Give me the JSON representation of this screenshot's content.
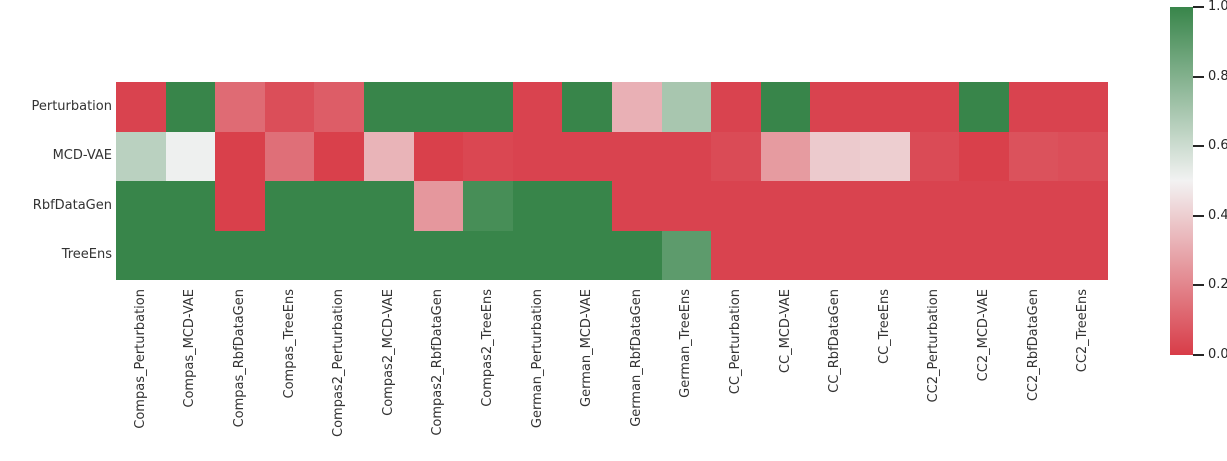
{
  "chart_data": {
    "type": "heatmap",
    "title": "",
    "xlabel": "",
    "ylabel": "",
    "rows": [
      "Perturbation",
      "MCD-VAE",
      "RbfDataGen",
      "TreeEns"
    ],
    "columns": [
      "Compas_Perturbation",
      "Compas_MCD-VAE",
      "Compas_RbfDataGen",
      "Compas_TreeEns",
      "Compas2_Perturbation",
      "Compas2_MCD-VAE",
      "Compas2_RbfDataGen",
      "Compas2_TreeEns",
      "German_Perturbation",
      "German_MCD-VAE",
      "German_RbfDataGen",
      "German_TreeEns",
      "CC_Perturbation",
      "CC_MCD-VAE",
      "CC_RbfDataGen",
      "CC_TreeEns",
      "CC2_Perturbation",
      "CC2_MCD-VAE",
      "CC2_RbfDataGen",
      "CC2_TreeEns"
    ],
    "values": [
      [
        0.02,
        1.0,
        0.13,
        0.05,
        0.09,
        1.0,
        1.0,
        1.0,
        0.02,
        1.0,
        0.32,
        0.7,
        0.02,
        1.0,
        0.02,
        0.02,
        0.02,
        1.0,
        0.02,
        0.02
      ],
      [
        0.65,
        0.51,
        0.01,
        0.14,
        0.01,
        0.33,
        0.01,
        0.03,
        0.02,
        0.02,
        0.02,
        0.02,
        0.04,
        0.26,
        0.39,
        0.4,
        0.04,
        0.01,
        0.06,
        0.05
      ],
      [
        1.0,
        1.0,
        0.01,
        1.0,
        1.0,
        1.0,
        0.25,
        0.96,
        1.0,
        1.0,
        0.02,
        0.02,
        0.02,
        0.02,
        0.02,
        0.02,
        0.02,
        0.02,
        0.02,
        0.02
      ],
      [
        1.0,
        1.0,
        1.0,
        1.0,
        1.0,
        1.0,
        1.0,
        1.0,
        1.0,
        1.0,
        1.0,
        0.9,
        0.02,
        0.02,
        0.02,
        0.02,
        0.02,
        0.02,
        0.02,
        0.02
      ]
    ],
    "value_range": [
      0,
      1
    ],
    "colormap": {
      "low": "#d83c48",
      "mid": "#f2f2f2",
      "high": "#38854a"
    },
    "colorbar": {
      "position": "right",
      "tick_labels": [
        "1.0",
        "0.8",
        "0.6",
        "0.4",
        "0.2",
        "0.0"
      ],
      "min": 0.0,
      "max": 1.0
    },
    "grid": false,
    "legend_position": "right"
  },
  "colors": {
    "background": "#ffffff",
    "tick_label_color": "#333333",
    "colorbar_label_color": "#262626"
  }
}
